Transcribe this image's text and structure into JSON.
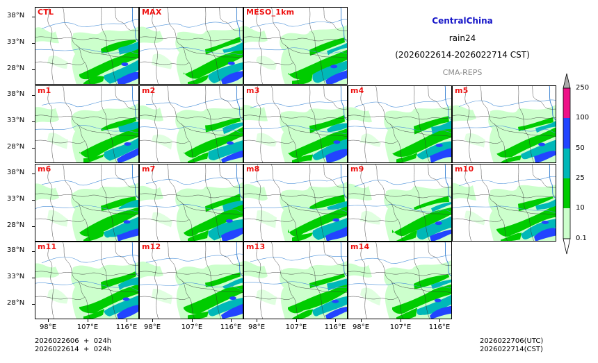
{
  "title": {
    "region": "CentralChina",
    "variable": "rain24",
    "period": "(2026022614-2026022714 CST)",
    "model": "CMA-REPS"
  },
  "panels": [
    {
      "label": "CTL"
    },
    {
      "label": "MAX"
    },
    {
      "label": "MESO_1km"
    },
    {
      "label": "m1"
    },
    {
      "label": "m2"
    },
    {
      "label": "m3"
    },
    {
      "label": "m4"
    },
    {
      "label": "m5"
    },
    {
      "label": "m6"
    },
    {
      "label": "m7"
    },
    {
      "label": "m8"
    },
    {
      "label": "m9"
    },
    {
      "label": "m10"
    },
    {
      "label": "m11"
    },
    {
      "label": "m12"
    },
    {
      "label": "m13"
    },
    {
      "label": "m14"
    }
  ],
  "axes": {
    "lat_ticks": [
      "38°N",
      "33°N",
      "28°N"
    ],
    "lon_ticks": [
      "98°E",
      "107°E",
      "116°E"
    ]
  },
  "colorbar": {
    "levels": [
      "0.1",
      "10",
      "25",
      "50",
      "100",
      "250"
    ],
    "colors": [
      "#ccffcc",
      "#00cc00",
      "#00b8b8",
      "#2244ff",
      "#ee1188",
      "#aaaaaa"
    ]
  },
  "footer": {
    "init_utc": "2026022606  +  024h",
    "init_cst": "2026022614  +  024h",
    "valid_utc": "2026022706(UTC)",
    "valid_cst": "2026022714(CST)"
  }
}
